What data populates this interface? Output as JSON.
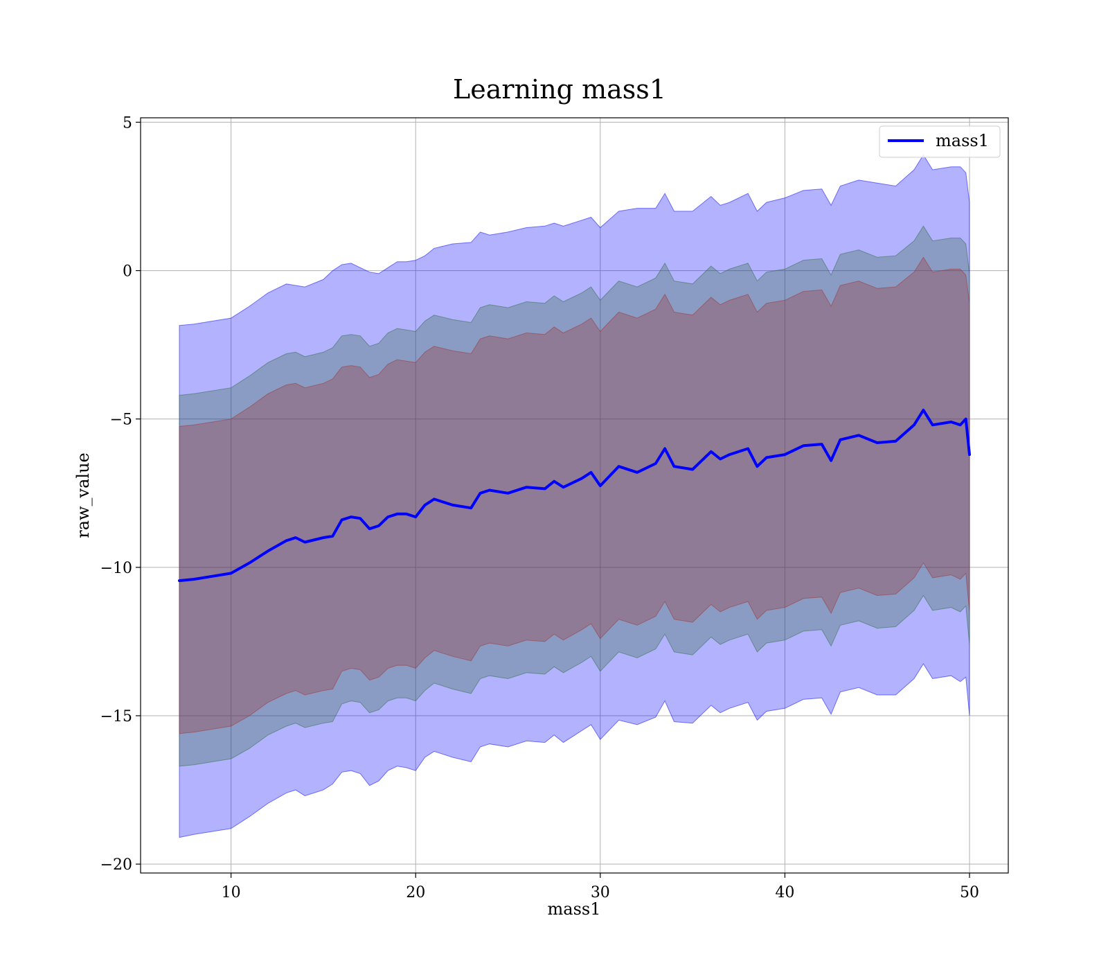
{
  "chart_data": {
    "type": "line",
    "title": "Learning mass1",
    "xlabel": "mass1",
    "ylabel": "raw_value",
    "xlim": [
      5.1,
      52.1
    ],
    "ylim": [
      -20.3,
      5.15
    ],
    "xticks": [
      10,
      20,
      30,
      40,
      50
    ],
    "yticks": [
      5,
      0,
      -5,
      -10,
      -15,
      -20
    ],
    "ytick_labels": [
      "5",
      "0",
      "−5",
      "−10",
      "−15",
      "−20"
    ],
    "xtick_labels": [
      "10",
      "20",
      "30",
      "40",
      "50"
    ],
    "grid": true,
    "legend": {
      "placement": "upper right",
      "entries": [
        "mass1"
      ]
    },
    "colors": {
      "line": "#0000ff",
      "band_outer": "#0000ff",
      "band_middle": "#2e6b3a",
      "band_inner": "#a03030"
    },
    "x": [
      7.2,
      8.0,
      9.0,
      10.0,
      11.0,
      12.0,
      13.0,
      13.5,
      14.0,
      15.0,
      15.5,
      16.0,
      16.5,
      17.0,
      17.5,
      18.0,
      18.5,
      19.0,
      19.5,
      20.0,
      20.5,
      21.0,
      22.0,
      23.0,
      23.5,
      24.0,
      25.0,
      26.0,
      27.0,
      27.5,
      28.0,
      29.0,
      29.5,
      30.0,
      31.0,
      32.0,
      33.0,
      33.5,
      34.0,
      35.0,
      36.0,
      36.5,
      37.0,
      38.0,
      38.5,
      39.0,
      40.0,
      41.0,
      42.0,
      42.5,
      43.0,
      44.0,
      45.0,
      46.0,
      47.0,
      47.5,
      48.0,
      49.0,
      49.5,
      49.8,
      50.0
    ],
    "series": [
      {
        "name": "mass1",
        "values": [
          -10.45,
          -10.4,
          -10.3,
          -10.2,
          -9.85,
          -9.45,
          -9.1,
          -9.0,
          -9.15,
          -9.0,
          -8.95,
          -8.4,
          -8.3,
          -8.35,
          -8.7,
          -8.6,
          -8.3,
          -8.2,
          -8.2,
          -8.3,
          -7.9,
          -7.7,
          -7.9,
          -8.0,
          -7.5,
          -7.4,
          -7.5,
          -7.3,
          -7.35,
          -7.1,
          -7.3,
          -7.0,
          -6.8,
          -7.25,
          -6.6,
          -6.8,
          -6.5,
          -6.0,
          -6.6,
          -6.7,
          -6.1,
          -6.35,
          -6.2,
          -6.0,
          -6.6,
          -6.3,
          -6.2,
          -5.9,
          -5.85,
          -6.4,
          -5.7,
          -5.55,
          -5.8,
          -5.75,
          -5.2,
          -4.7,
          -5.2,
          -5.1,
          -5.2,
          -5.0,
          -6.2
        ]
      }
    ],
    "bands": [
      {
        "name": "outer",
        "upper": [
          -1.85,
          -1.8,
          -1.7,
          -1.6,
          -1.2,
          -0.75,
          -0.45,
          -0.5,
          -0.55,
          -0.3,
          0.0,
          0.2,
          0.25,
          0.1,
          -0.05,
          -0.1,
          0.1,
          0.3,
          0.3,
          0.35,
          0.5,
          0.75,
          0.9,
          0.95,
          1.3,
          1.2,
          1.3,
          1.45,
          1.5,
          1.6,
          1.5,
          1.7,
          1.8,
          1.45,
          2.0,
          2.1,
          2.1,
          2.6,
          2.0,
          2.0,
          2.5,
          2.2,
          2.3,
          2.6,
          2.0,
          2.3,
          2.45,
          2.7,
          2.75,
          2.2,
          2.85,
          3.05,
          2.95,
          2.85,
          3.4,
          3.9,
          3.4,
          3.5,
          3.5,
          3.3,
          2.3
        ],
        "lower": [
          -19.1,
          -19.0,
          -18.9,
          -18.8,
          -18.4,
          -17.95,
          -17.6,
          -17.5,
          -17.7,
          -17.5,
          -17.3,
          -16.9,
          -16.85,
          -16.95,
          -17.35,
          -17.2,
          -16.85,
          -16.7,
          -16.75,
          -16.85,
          -16.4,
          -16.2,
          -16.4,
          -16.55,
          -16.05,
          -15.95,
          -16.05,
          -15.85,
          -15.9,
          -15.65,
          -15.9,
          -15.5,
          -15.3,
          -15.8,
          -15.15,
          -15.3,
          -15.05,
          -14.5,
          -15.2,
          -15.25,
          -14.65,
          -14.9,
          -14.75,
          -14.55,
          -15.15,
          -14.85,
          -14.75,
          -14.45,
          -14.4,
          -14.95,
          -14.2,
          -14.05,
          -14.3,
          -14.3,
          -13.75,
          -13.25,
          -13.75,
          -13.65,
          -13.85,
          -13.7,
          -15.0
        ]
      },
      {
        "name": "middle",
        "upper": [
          -4.2,
          -4.15,
          -4.05,
          -3.95,
          -3.55,
          -3.1,
          -2.8,
          -2.75,
          -2.9,
          -2.75,
          -2.6,
          -2.2,
          -2.15,
          -2.2,
          -2.55,
          -2.45,
          -2.1,
          -1.95,
          -2.0,
          -2.05,
          -1.7,
          -1.5,
          -1.65,
          -1.75,
          -1.25,
          -1.15,
          -1.25,
          -1.05,
          -1.1,
          -0.85,
          -1.05,
          -0.75,
          -0.55,
          -1.0,
          -0.35,
          -0.55,
          -0.25,
          0.25,
          -0.35,
          -0.45,
          0.15,
          -0.1,
          0.05,
          0.25,
          -0.35,
          -0.05,
          0.05,
          0.35,
          0.4,
          -0.15,
          0.55,
          0.7,
          0.45,
          0.5,
          1.0,
          1.5,
          1.0,
          1.1,
          1.1,
          0.9,
          -0.1
        ],
        "lower": [
          -16.7,
          -16.65,
          -16.55,
          -16.45,
          -16.1,
          -15.65,
          -15.35,
          -15.25,
          -15.4,
          -15.25,
          -15.2,
          -14.6,
          -14.5,
          -14.55,
          -14.9,
          -14.8,
          -14.5,
          -14.4,
          -14.4,
          -14.5,
          -14.15,
          -13.9,
          -14.1,
          -14.25,
          -13.75,
          -13.65,
          -13.75,
          -13.55,
          -13.6,
          -13.35,
          -13.55,
          -13.2,
          -13.0,
          -13.5,
          -12.85,
          -13.05,
          -12.75,
          -12.25,
          -12.85,
          -12.95,
          -12.35,
          -12.6,
          -12.45,
          -12.25,
          -12.85,
          -12.55,
          -12.45,
          -12.15,
          -12.1,
          -12.65,
          -11.95,
          -11.8,
          -12.05,
          -12.0,
          -11.45,
          -10.95,
          -11.45,
          -11.35,
          -11.5,
          -11.3,
          -12.6
        ]
      },
      {
        "name": "inner",
        "upper": [
          -5.25,
          -5.2,
          -5.1,
          -5.0,
          -4.6,
          -4.15,
          -3.85,
          -3.8,
          -3.95,
          -3.8,
          -3.65,
          -3.25,
          -3.2,
          -3.25,
          -3.6,
          -3.5,
          -3.15,
          -3.0,
          -3.05,
          -3.1,
          -2.75,
          -2.55,
          -2.7,
          -2.8,
          -2.3,
          -2.2,
          -2.3,
          -2.1,
          -2.15,
          -1.9,
          -2.1,
          -1.8,
          -1.6,
          -2.05,
          -1.4,
          -1.6,
          -1.3,
          -0.8,
          -1.4,
          -1.5,
          -0.9,
          -1.15,
          -1.0,
          -0.8,
          -1.4,
          -1.1,
          -1.0,
          -0.7,
          -0.65,
          -1.2,
          -0.5,
          -0.35,
          -0.6,
          -0.55,
          -0.05,
          0.45,
          -0.05,
          0.05,
          0.05,
          -0.15,
          -1.1
        ],
        "lower": [
          -15.6,
          -15.55,
          -15.45,
          -15.35,
          -15.0,
          -14.55,
          -14.25,
          -14.15,
          -14.3,
          -14.15,
          -14.1,
          -13.5,
          -13.4,
          -13.45,
          -13.8,
          -13.7,
          -13.4,
          -13.3,
          -13.3,
          -13.4,
          -13.05,
          -12.8,
          -13.0,
          -13.15,
          -12.65,
          -12.55,
          -12.65,
          -12.45,
          -12.5,
          -12.25,
          -12.45,
          -12.1,
          -11.9,
          -12.4,
          -11.75,
          -11.95,
          -11.65,
          -11.15,
          -11.75,
          -11.85,
          -11.25,
          -11.5,
          -11.35,
          -11.15,
          -11.75,
          -11.45,
          -11.35,
          -11.05,
          -11.0,
          -11.55,
          -10.85,
          -10.7,
          -10.95,
          -10.9,
          -10.35,
          -9.85,
          -10.35,
          -10.25,
          -10.4,
          -10.2,
          -11.5
        ]
      }
    ]
  }
}
